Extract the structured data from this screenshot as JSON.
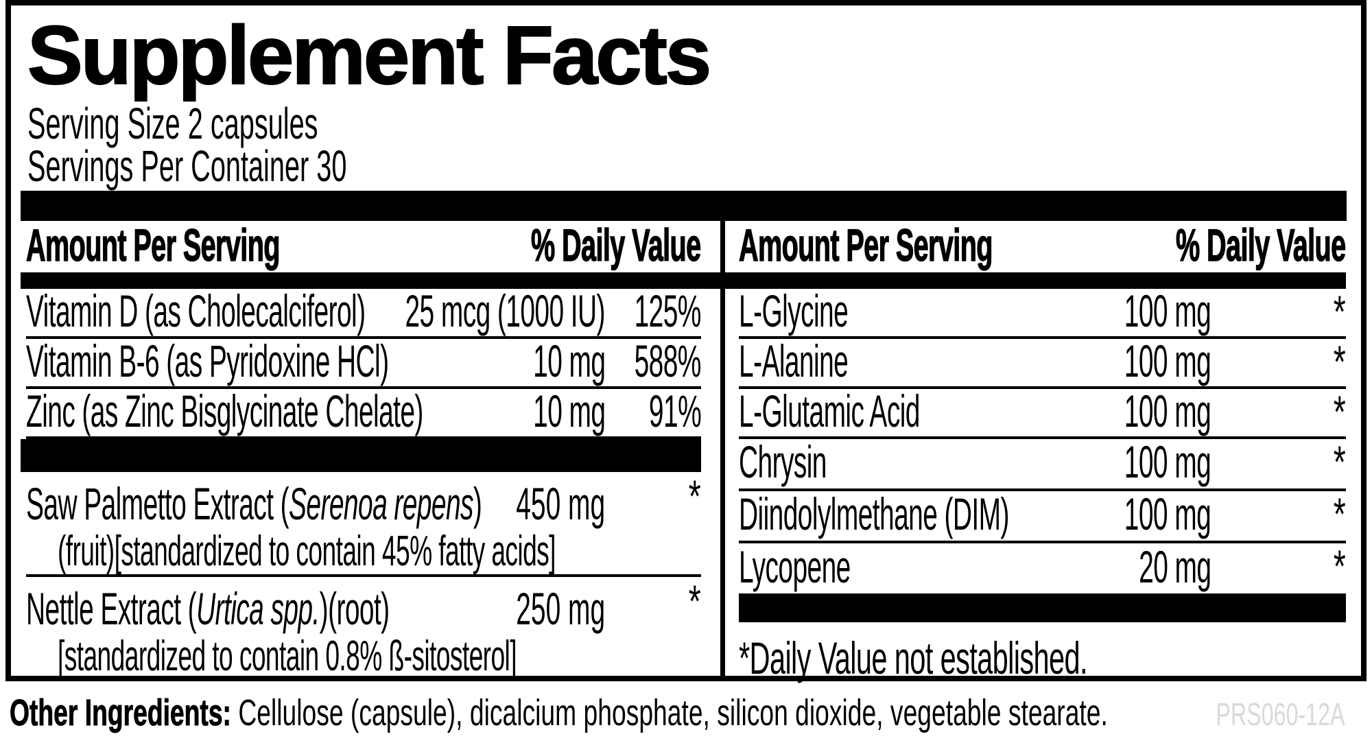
{
  "title": "Supplement Facts",
  "serving_size": "Serving Size 2 capsules",
  "servings_per_container": "Servings Per Container 30",
  "left": {
    "header": {
      "amount_label": "Amount Per Serving",
      "dv_label": "% Daily Value"
    },
    "rows": [
      {
        "name": "Vitamin D (as Cholecalciferol)",
        "amount": "25 mcg (1000 IU)",
        "dv": "125%"
      },
      {
        "name": "Vitamin B-6 (as Pyridoxine HCl)",
        "amount": "10 mg",
        "dv": "588%"
      },
      {
        "name": "Zinc (as Zinc Bisglycinate Chelate)",
        "amount": "10 mg",
        "dv": "91%"
      }
    ],
    "botanicals": [
      {
        "prefix": "Saw Palmetto Extract (",
        "species": "Serenoa repens",
        "suffix": ")",
        "amount": "450 mg",
        "dv": "*",
        "detail": "(fruit)[standardized to contain 45% fatty acids]"
      },
      {
        "prefix": "Nettle Extract (",
        "species": "Urtica spp.",
        "suffix": ")(root)",
        "amount": "250 mg",
        "dv": "*",
        "detail": "[standardized to contain 0.8% ß-sitosterol]"
      }
    ]
  },
  "right": {
    "header": {
      "amount_label": "Amount Per Serving",
      "dv_label": "% Daily Value"
    },
    "rows": [
      {
        "name": "L-Glycine",
        "amount": "100 mg",
        "dv": "*"
      },
      {
        "name": "L-Alanine",
        "amount": "100 mg",
        "dv": "*"
      },
      {
        "name": "L-Glutamic Acid",
        "amount": "100 mg",
        "dv": "*"
      },
      {
        "name": "Chrysin",
        "amount": "100 mg",
        "dv": "*"
      },
      {
        "name": "Diindolylmethane (DIM)",
        "amount": "100 mg",
        "dv": "*"
      },
      {
        "name": "Lycopene",
        "amount": "20 mg",
        "dv": "*"
      }
    ],
    "footnote": "*Daily Value not established."
  },
  "footer": {
    "other_ingredients_label": "Other Ingredients:",
    "other_ingredients_text": "Cellulose (capsule), dicalcium phosphate, silicon dioxide, vegetable stearate.",
    "product_code": "PRS060-12A"
  },
  "colors": {
    "ink": "#000000",
    "paper": "#ffffff",
    "product_code_gray": "#d9d9d9"
  }
}
